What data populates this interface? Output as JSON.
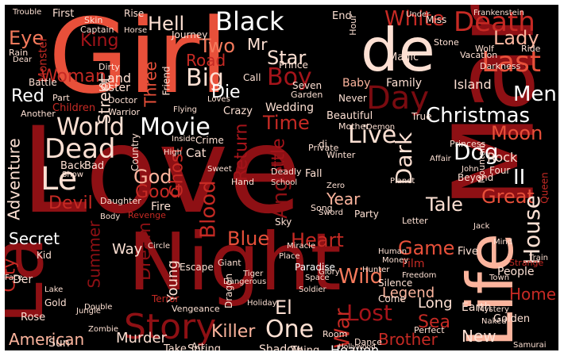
{
  "palette": {
    "background": "#000000",
    "frame": "#ffffff",
    "tones": [
      "#7a0b10",
      "#8e1014",
      "#a5141a",
      "#c62a24",
      "#e8503a",
      "#f57a5c",
      "#fbb49d",
      "#fde0d3",
      "#ffffff"
    ]
  },
  "words": [
    {
      "text": "Love",
      "tone": 1
    },
    {
      "text": "Man",
      "tone": 1
    },
    {
      "text": "Girl",
      "tone": 4
    },
    {
      "text": "Night",
      "tone": 1
    },
    {
      "text": "Life",
      "tone": 6
    },
    {
      "text": "La",
      "tone": 1
    },
    {
      "text": "de",
      "tone": 7
    },
    {
      "text": "Story",
      "tone": 1
    },
    {
      "text": "Boy",
      "tone": 2
    },
    {
      "text": "Day",
      "tone": 0
    },
    {
      "text": "Death",
      "tone": 3
    },
    {
      "text": "Last",
      "tone": 4
    },
    {
      "text": "Black",
      "tone": 8
    },
    {
      "text": "White",
      "tone": 3
    },
    {
      "text": "Big",
      "tone": 7
    },
    {
      "text": "Two",
      "tone": 5
    },
    {
      "text": "Road",
      "tone": 3
    },
    {
      "text": "King",
      "tone": 2
    },
    {
      "text": "Hell",
      "tone": 7
    },
    {
      "text": "Woman",
      "tone": 3
    },
    {
      "text": "Eye",
      "tone": 5
    },
    {
      "text": "Mr",
      "tone": 7
    },
    {
      "text": "Star",
      "tone": 7
    },
    {
      "text": "Time",
      "tone": 3
    },
    {
      "text": "Die",
      "tone": 8
    },
    {
      "text": "World",
      "tone": 7
    },
    {
      "text": "Movie",
      "tone": 8
    },
    {
      "text": "Christmas",
      "tone": 8
    },
    {
      "text": "Dead",
      "tone": 7
    },
    {
      "text": "Le",
      "tone": 7
    },
    {
      "text": "Live",
      "tone": 7
    },
    {
      "text": "Dark",
      "tone": 7
    },
    {
      "text": "Dog",
      "tone": 8
    },
    {
      "text": "Men",
      "tone": 8
    },
    {
      "text": "Lady",
      "tone": 6
    },
    {
      "text": "Moon",
      "tone": 4
    },
    {
      "text": "Red",
      "tone": 8
    },
    {
      "text": "Adventure",
      "tone": 7
    },
    {
      "text": "Street",
      "tone": 7
    },
    {
      "text": "Three",
      "tone": 4
    },
    {
      "text": "Return",
      "tone": 2
    },
    {
      "text": "Little",
      "tone": 2
    },
    {
      "text": "Angel",
      "tone": 1
    },
    {
      "text": "God",
      "tone": 6
    },
    {
      "text": "Good",
      "tone": 3
    },
    {
      "text": "Devil",
      "tone": 3
    },
    {
      "text": "Blood",
      "tone": 3
    },
    {
      "text": "Ghost",
      "tone": 3
    },
    {
      "text": "Tale",
      "tone": 7
    },
    {
      "text": "Year",
      "tone": 6
    },
    {
      "text": "Great",
      "tone": 4
    },
    {
      "text": "House",
      "tone": 7
    },
    {
      "text": "II",
      "tone": 8
    },
    {
      "text": "Secret",
      "tone": 8
    },
    {
      "text": "Blue",
      "tone": 4
    },
    {
      "text": "Heart",
      "tone": 3
    },
    {
      "text": "Game",
      "tone": 4
    },
    {
      "text": "City",
      "tone": 3
    },
    {
      "text": "Summer",
      "tone": 1
    },
    {
      "text": "Dream",
      "tone": 1
    },
    {
      "text": "Lost",
      "tone": 2
    },
    {
      "text": "Wild",
      "tone": 5
    },
    {
      "text": "One",
      "tone": 7
    },
    {
      "text": "War",
      "tone": 3
    },
    {
      "text": "American",
      "tone": 6
    },
    {
      "text": "Murder",
      "tone": 7
    },
    {
      "text": "Killer",
      "tone": 6
    },
    {
      "text": "El",
      "tone": 7
    },
    {
      "text": "Sea",
      "tone": 3
    },
    {
      "text": "New",
      "tone": 7
    },
    {
      "text": "Brother",
      "tone": 3
    },
    {
      "text": "Home",
      "tone": 3
    },
    {
      "text": "Long",
      "tone": 7
    },
    {
      "text": "Legend",
      "tone": 6
    },
    {
      "text": "Young",
      "tone": 7
    },
    {
      "text": "Shadow",
      "tone": 7
    },
    {
      "text": "Heaven",
      "tone": 8
    },
    {
      "text": "Way",
      "tone": 7
    },
    {
      "text": "Land",
      "tone": 7
    },
    {
      "text": "Sister",
      "tone": 7
    },
    {
      "text": "Island",
      "tone": 7
    },
    {
      "text": "Family",
      "tone": 7
    },
    {
      "text": "Baby",
      "tone": 6
    },
    {
      "text": "Rock",
      "tone": 7
    },
    {
      "text": "Four",
      "tone": 7
    },
    {
      "text": "Beyond",
      "tone": 7
    },
    {
      "text": "Fire",
      "tone": 7
    },
    {
      "text": "Film",
      "tone": 3
    },
    {
      "text": "People",
      "tone": 7
    },
    {
      "text": "Party",
      "tone": 7
    },
    {
      "text": "Queen",
      "tone": 3
    },
    {
      "text": "Sun",
      "tone": 7
    },
    {
      "text": "Rose",
      "tone": 7
    },
    {
      "text": "Earth",
      "tone": 7
    },
    {
      "text": "Golden",
      "tone": 7
    },
    {
      "text": "Monster",
      "tone": 3
    },
    {
      "text": "Kid",
      "tone": 7
    },
    {
      "text": "Der",
      "tone": 7
    },
    {
      "text": "Five",
      "tone": 7
    },
    {
      "text": "Money",
      "tone": 7
    },
    {
      "text": "Silence",
      "tone": 7
    },
    {
      "text": "Freedom",
      "tone": 7
    },
    {
      "text": "Thing",
      "tone": 7
    },
    {
      "text": "Room",
      "tone": 7
    },
    {
      "text": "Dance",
      "tone": 7
    },
    {
      "text": "Perfect",
      "tone": 7
    },
    {
      "text": "Mystery",
      "tone": 7
    },
    {
      "text": "Naked",
      "tone": 7
    },
    {
      "text": "Zombie",
      "tone": 7
    },
    {
      "text": "Art",
      "tone": 7
    },
    {
      "text": "Take",
      "tone": 7
    },
    {
      "text": "Spring",
      "tone": 7
    },
    {
      "text": "Terror",
      "tone": 3
    },
    {
      "text": "Vengeance",
      "tone": 7
    },
    {
      "text": "Holiday",
      "tone": 7
    },
    {
      "text": "Soldier",
      "tone": 7
    },
    {
      "text": "Hunter",
      "tone": 7
    },
    {
      "text": "Paradise",
      "tone": 8
    },
    {
      "text": "Giant",
      "tone": 7
    },
    {
      "text": "Dragon",
      "tone": 7
    },
    {
      "text": "Dangerous",
      "tone": 7
    },
    {
      "text": "Tiger",
      "tone": 7
    },
    {
      "text": "Escape",
      "tone": 7
    },
    {
      "text": "Glory",
      "tone": 7
    },
    {
      "text": "Space",
      "tone": 7
    },
    {
      "text": "Miracle",
      "tone": 7
    },
    {
      "text": "Sky",
      "tone": 7
    },
    {
      "text": "Place",
      "tone": 7
    },
    {
      "text": "Letter",
      "tone": 7
    },
    {
      "text": "Human",
      "tone": 7
    },
    {
      "text": "Planet",
      "tone": 7
    },
    {
      "text": "Mountain",
      "tone": 7
    },
    {
      "text": "Princess",
      "tone": 7
    },
    {
      "text": "Winter",
      "tone": 7
    },
    {
      "text": "Private",
      "tone": 7
    },
    {
      "text": "Fall",
      "tone": 7
    },
    {
      "text": "Deadly",
      "tone": 7
    },
    {
      "text": "Beautiful",
      "tone": 7
    },
    {
      "text": "Mother",
      "tone": 7
    },
    {
      "text": "Wedding",
      "tone": 7
    },
    {
      "text": "Crazy",
      "tone": 7
    },
    {
      "text": "Cat",
      "tone": 7
    },
    {
      "text": "Crime",
      "tone": 7
    },
    {
      "text": "Loves",
      "tone": 7
    },
    {
      "text": "Inside",
      "tone": 7
    },
    {
      "text": "Children",
      "tone": 3
    },
    {
      "text": "Warrior",
      "tone": 7
    },
    {
      "text": "Part",
      "tone": 7
    },
    {
      "text": "Doctor",
      "tone": 7
    },
    {
      "text": "Dirty",
      "tone": 7
    },
    {
      "text": "Friend",
      "tone": 7
    },
    {
      "text": "Journey",
      "tone": 7
    },
    {
      "text": "Country",
      "tone": 7
    },
    {
      "text": "Call",
      "tone": 7
    },
    {
      "text": "Prince",
      "tone": 7
    },
    {
      "text": "Garden",
      "tone": 7
    },
    {
      "text": "Never",
      "tone": 7
    },
    {
      "text": "Seven",
      "tone": 7
    },
    {
      "text": "Magic",
      "tone": 7
    },
    {
      "text": "Stone",
      "tone": 7
    },
    {
      "text": "Wolf",
      "tone": 7
    },
    {
      "text": "True",
      "tone": 7
    },
    {
      "text": "Darkness",
      "tone": 7
    },
    {
      "text": "Frankenstein",
      "tone": 7
    },
    {
      "text": "Vacation",
      "tone": 7
    },
    {
      "text": "Hour",
      "tone": 7
    },
    {
      "text": "End",
      "tone": 7
    },
    {
      "text": "Miss",
      "tone": 7
    },
    {
      "text": "Rise",
      "tone": 7
    },
    {
      "text": "First",
      "tone": 7
    },
    {
      "text": "Skin",
      "tone": 7
    },
    {
      "text": "Captain",
      "tone": 7
    },
    {
      "text": "Battle",
      "tone": 7
    },
    {
      "text": "Horse",
      "tone": 7
    },
    {
      "text": "Rain",
      "tone": 7
    },
    {
      "text": "Another",
      "tone": 7
    },
    {
      "text": "Body",
      "tone": 7
    },
    {
      "text": "Daughter",
      "tone": 7
    },
    {
      "text": "Revenge",
      "tone": 3
    },
    {
      "text": "Flying",
      "tone": 7
    },
    {
      "text": "Hand",
      "tone": 7
    },
    {
      "text": "School",
      "tone": 7
    },
    {
      "text": "Song",
      "tone": 7
    },
    {
      "text": "Sweet",
      "tone": 7
    },
    {
      "text": "High",
      "tone": 7
    },
    {
      "text": "Show",
      "tone": 7
    },
    {
      "text": "Bad",
      "tone": 7
    },
    {
      "text": "Back",
      "tone": 7
    },
    {
      "text": "Double",
      "tone": 7
    },
    {
      "text": "Jungle",
      "tone": 7
    },
    {
      "text": "Face",
      "tone": 7
    },
    {
      "text": "Lake",
      "tone": 7
    },
    {
      "text": "Gold",
      "tone": 7
    },
    {
      "text": "Circle",
      "tone": 7
    },
    {
      "text": "Sword",
      "tone": 7
    },
    {
      "text": "Zero",
      "tone": 7
    },
    {
      "text": "John",
      "tone": 7
    },
    {
      "text": "Jack",
      "tone": 7
    },
    {
      "text": "Mind",
      "tone": 7
    },
    {
      "text": "Dear",
      "tone": 7
    },
    {
      "text": "Come",
      "tone": 7
    },
    {
      "text": "Samurai",
      "tone": 7
    },
    {
      "text": "Town",
      "tone": 7
    },
    {
      "text": "Train",
      "tone": 7
    },
    {
      "text": "Trouble",
      "tone": 7
    },
    {
      "text": "Hollywood",
      "tone": 7
    },
    {
      "text": "Strange",
      "tone": 3
    },
    {
      "text": "Ride",
      "tone": 7
    },
    {
      "text": "Affair",
      "tone": 7
    },
    {
      "text": "Demon",
      "tone": 7
    },
    {
      "text": "Under",
      "tone": 7
    },
    {
      "text": "di",
      "tone": 7
    }
  ]
}
